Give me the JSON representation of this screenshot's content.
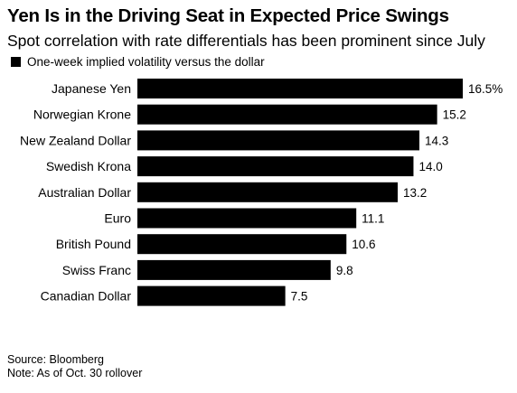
{
  "title": "Yen Is in the Driving Seat in Expected Price Swings",
  "subtitle": "Spot correlation with rate differentials has been prominent since July",
  "legend": {
    "label": "One-week implied volatility versus the dollar",
    "color": "#000000"
  },
  "chart_data": {
    "type": "bar",
    "orientation": "horizontal",
    "categories": [
      "Japanese Yen",
      "Norwegian Krone",
      "New Zealand Dollar",
      "Swedish Krona",
      "Australian Dollar",
      "Euro",
      "British Pound",
      "Swiss Franc",
      "Canadian Dollar"
    ],
    "series": [
      {
        "name": "One-week implied volatility versus the dollar",
        "values": [
          16.5,
          15.2,
          14.3,
          14.0,
          13.2,
          11.1,
          10.6,
          9.8,
          7.5
        ]
      }
    ],
    "value_labels": [
      "16.5%",
      "15.2",
      "14.3",
      "14.0",
      "13.2",
      "11.1",
      "10.6",
      "9.8",
      "7.5"
    ],
    "xlim": [
      0,
      16.5
    ],
    "grid": false,
    "legend_position": "top-left",
    "bar_color": "#000000"
  },
  "footer": {
    "source": "Source: Bloomberg",
    "note": "Note: As of Oct. 30 rollover"
  }
}
